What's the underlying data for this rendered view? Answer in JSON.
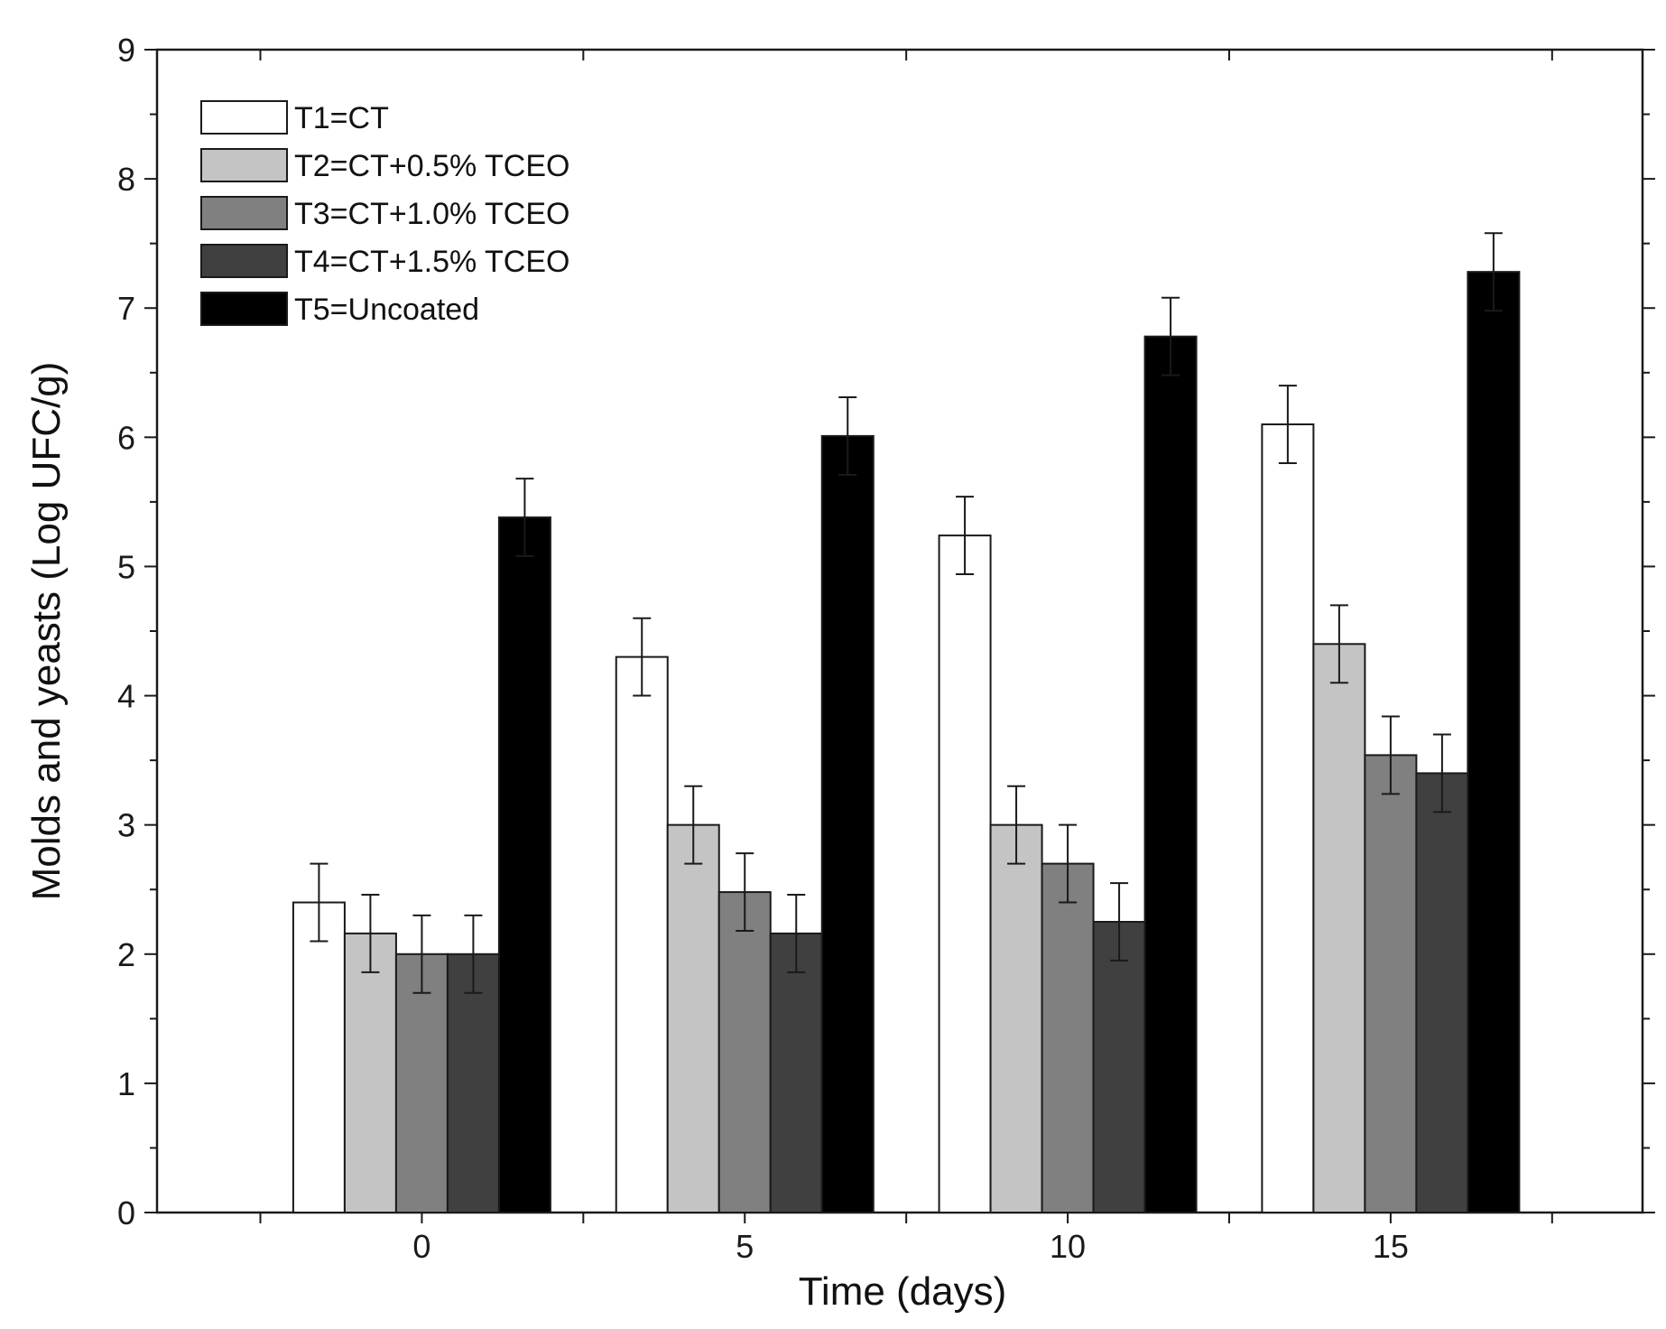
{
  "chart_data": {
    "type": "bar",
    "title": "",
    "xlabel": "Time (days)",
    "ylabel": "Molds and yeasts (Log UFC/g)",
    "categories": [
      "0",
      "5",
      "10",
      "15"
    ],
    "ylim": [
      0,
      9
    ],
    "yticks": [
      0,
      1,
      2,
      3,
      4,
      5,
      6,
      7,
      8,
      9
    ],
    "grid": false,
    "legend_position": "top-left",
    "series": [
      {
        "name": "T1=CT",
        "color": "#ffffff",
        "values": [
          2.4,
          4.3,
          5.24,
          6.1
        ],
        "errors": [
          0.3,
          0.3,
          0.3,
          0.3
        ]
      },
      {
        "name": "T2=CT+0.5% TCEO",
        "color": "#c4c4c4",
        "values": [
          2.16,
          3.0,
          3.0,
          4.4
        ],
        "errors": [
          0.3,
          0.3,
          0.3,
          0.3
        ]
      },
      {
        "name": "T3=CT+1.0% TCEO",
        "color": "#808080",
        "values": [
          2.0,
          2.48,
          2.7,
          3.54
        ],
        "errors": [
          0.3,
          0.3,
          0.3,
          0.3
        ]
      },
      {
        "name": "T4=CT+1.5% TCEO",
        "color": "#404040",
        "values": [
          2.0,
          2.16,
          2.25,
          3.4
        ],
        "errors": [
          0.3,
          0.3,
          0.3,
          0.3
        ]
      },
      {
        "name": "T5=Uncoated",
        "color": "#000000",
        "values": [
          5.38,
          6.01,
          6.78,
          7.28
        ],
        "errors": [
          0.3,
          0.3,
          0.3,
          0.3
        ]
      }
    ]
  }
}
